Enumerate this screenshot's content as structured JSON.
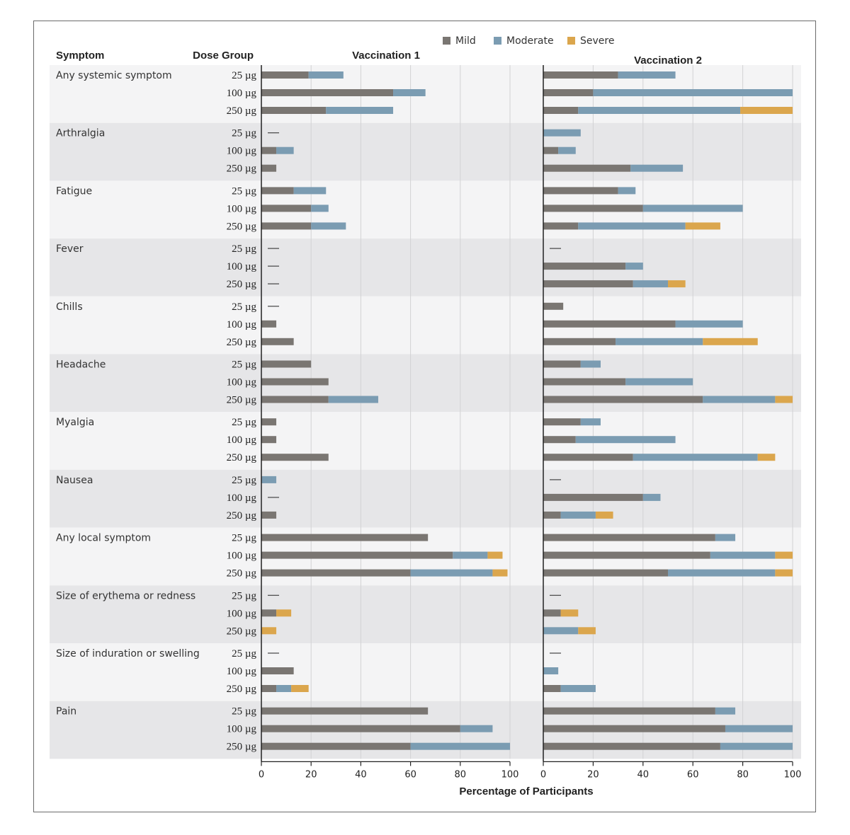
{
  "chart_data": {
    "type": "bar",
    "orientation": "horizontal-stacked",
    "headers": {
      "symptom": "Symptom",
      "dose_group": "Dose Group",
      "panel1": "Vaccination 1",
      "panel2": "Vaccination 2"
    },
    "xlabel": "Percentage of Participants",
    "xlim": [
      0,
      100
    ],
    "xticks": [
      0,
      20,
      40,
      60,
      80,
      100
    ],
    "legend": [
      {
        "name": "Mild",
        "color": "#7a7672"
      },
      {
        "name": "Moderate",
        "color": "#7b9cb2"
      },
      {
        "name": "Severe",
        "color": "#dba64d"
      }
    ],
    "doses": [
      "25 µg",
      "100 µg",
      "250 µg"
    ],
    "symptoms": [
      {
        "name": "Any systemic symptom",
        "vac1": [
          [
            19,
            14,
            0
          ],
          [
            53,
            13,
            0
          ],
          [
            26,
            27,
            0
          ]
        ],
        "vac2": [
          [
            30,
            23,
            0
          ],
          [
            20,
            80,
            0
          ],
          [
            14,
            65,
            21
          ]
        ]
      },
      {
        "name": "Arthralgia",
        "vac1": [
          null,
          [
            6,
            7,
            0
          ],
          [
            6,
            0,
            0
          ]
        ],
        "vac2": [
          [
            0,
            15,
            0
          ],
          [
            6,
            7,
            0
          ],
          [
            35,
            21,
            0
          ]
        ]
      },
      {
        "name": "Fatigue",
        "vac1": [
          [
            13,
            13,
            0
          ],
          [
            20,
            7,
            0
          ],
          [
            20,
            14,
            0
          ]
        ],
        "vac2": [
          [
            30,
            7,
            0
          ],
          [
            40,
            40,
            0
          ],
          [
            14,
            43,
            14
          ]
        ]
      },
      {
        "name": "Fever",
        "vac1": [
          null,
          null,
          null
        ],
        "vac2": [
          null,
          [
            33,
            7,
            0
          ],
          [
            36,
            14,
            7
          ]
        ]
      },
      {
        "name": "Chills",
        "vac1": [
          null,
          [
            6,
            0,
            0
          ],
          [
            13,
            0,
            0
          ]
        ],
        "vac2": [
          [
            8,
            0,
            0
          ],
          [
            53,
            27,
            0
          ],
          [
            29,
            35,
            22
          ]
        ]
      },
      {
        "name": "Headache",
        "vac1": [
          [
            20,
            0,
            0
          ],
          [
            27,
            0,
            0
          ],
          [
            27,
            20,
            0
          ]
        ],
        "vac2": [
          [
            15,
            8,
            0
          ],
          [
            33,
            27,
            0
          ],
          [
            64,
            29,
            7
          ]
        ]
      },
      {
        "name": "Myalgia",
        "vac1": [
          [
            6,
            0,
            0
          ],
          [
            6,
            0,
            0
          ],
          [
            27,
            0,
            0
          ]
        ],
        "vac2": [
          [
            15,
            8,
            0
          ],
          [
            13,
            40,
            0
          ],
          [
            36,
            50,
            7
          ]
        ]
      },
      {
        "name": "Nausea",
        "vac1": [
          [
            0,
            6,
            0
          ],
          null,
          [
            6,
            0,
            0
          ]
        ],
        "vac2": [
          null,
          [
            40,
            7,
            0
          ],
          [
            7,
            14,
            7
          ]
        ]
      },
      {
        "name": "Any local symptom",
        "vac1": [
          [
            67,
            0,
            0
          ],
          [
            77,
            14,
            6
          ],
          [
            60,
            33,
            6
          ]
        ],
        "vac2": [
          [
            69,
            8,
            0
          ],
          [
            67,
            26,
            7
          ],
          [
            50,
            43,
            7
          ]
        ]
      },
      {
        "name": "Size of erythema or redness",
        "vac1": [
          null,
          [
            6,
            0,
            6
          ],
          [
            0,
            0,
            6
          ]
        ],
        "vac2": [
          null,
          [
            7,
            0,
            7
          ],
          [
            0,
            14,
            7
          ]
        ]
      },
      {
        "name": "Size of induration or swelling",
        "vac1": [
          null,
          [
            13,
            0,
            0
          ],
          [
            6,
            6,
            7
          ]
        ],
        "vac2": [
          null,
          [
            0,
            6,
            0
          ],
          [
            7,
            14,
            0
          ]
        ]
      },
      {
        "name": "Pain",
        "vac1": [
          [
            67,
            0,
            0
          ],
          [
            80,
            13,
            0
          ],
          [
            60,
            40,
            0
          ]
        ],
        "vac2": [
          [
            69,
            8,
            0
          ],
          [
            73,
            27,
            0
          ],
          [
            71,
            29,
            0
          ]
        ]
      }
    ]
  }
}
